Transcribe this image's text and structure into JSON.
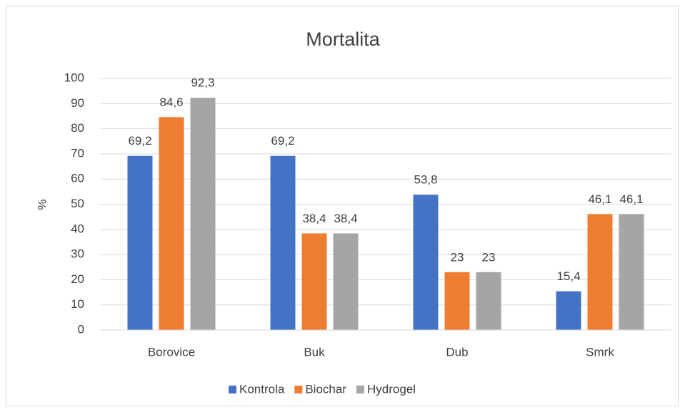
{
  "chart_data": {
    "type": "bar",
    "title": "Mortalita",
    "y_label": "%",
    "categories": [
      "Borovice",
      "Buk",
      "Dub",
      "Smrk"
    ],
    "series": [
      {
        "name": "Kontrola",
        "color": "#4472c4",
        "values": [
          69.2,
          69.2,
          53.8,
          15.4
        ],
        "value_labels": [
          "69,2",
          "69,2",
          "53,8",
          "15,4"
        ]
      },
      {
        "name": "Biochar",
        "color": "#ed7d31",
        "values": [
          84.6,
          38.4,
          23,
          46.1
        ],
        "value_labels": [
          "84,6",
          "38,4",
          "23",
          "46,1"
        ]
      },
      {
        "name": "Hydrogel",
        "color": "#a5a5a5",
        "values": [
          92.3,
          38.4,
          23,
          46.1
        ],
        "value_labels": [
          "92,3",
          "38,4",
          "23",
          "46,1"
        ]
      }
    ],
    "ylim": [
      0,
      100
    ],
    "yticks": [
      0,
      10,
      20,
      30,
      40,
      50,
      60,
      70,
      80,
      90,
      100
    ],
    "grid": true,
    "legend": "bottom"
  }
}
